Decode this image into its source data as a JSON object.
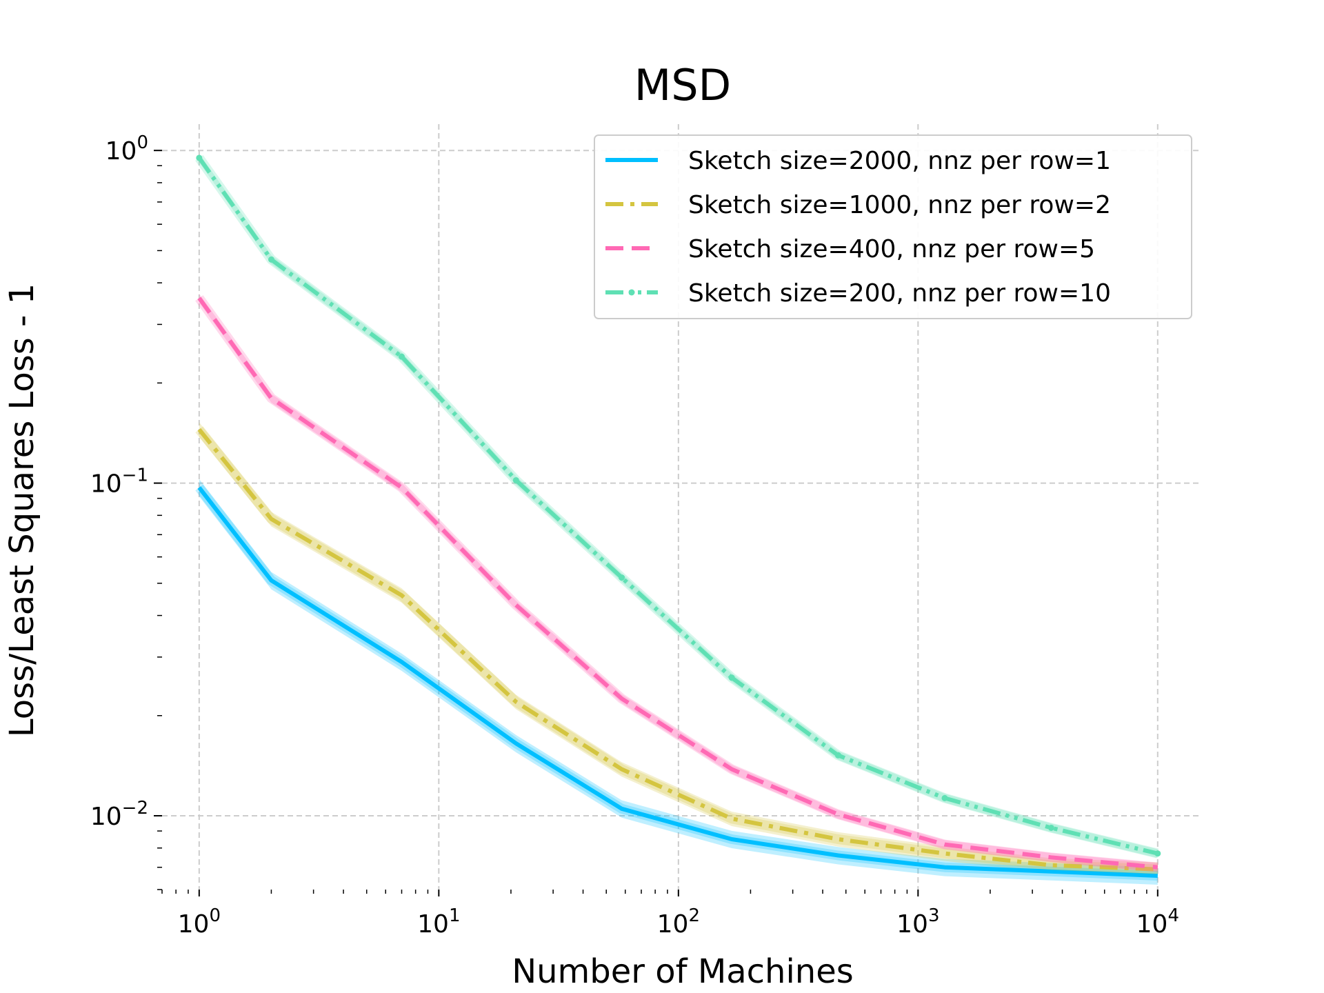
{
  "chart_data": {
    "type": "line",
    "title": "MSD",
    "xlabel": "Number of Machines",
    "ylabel": "Loss/Least Squares Loss - 1",
    "xscale": "log",
    "yscale": "log",
    "xlim": [
      0.7,
      15000
    ],
    "ylim": [
      0.006,
      1.2
    ],
    "xticks": [
      1,
      10,
      100,
      1000,
      10000
    ],
    "xtick_labels": [
      {
        "base": "10",
        "exp": "0"
      },
      {
        "base": "10",
        "exp": "1"
      },
      {
        "base": "10",
        "exp": "2"
      },
      {
        "base": "10",
        "exp": "3"
      },
      {
        "base": "10",
        "exp": "4"
      }
    ],
    "yticks": [
      0.01,
      0.1,
      1
    ],
    "ytick_labels": [
      {
        "base": "10",
        "exp": "−2"
      },
      {
        "base": "10",
        "exp": "−1"
      },
      {
        "base": "10",
        "exp": "0"
      }
    ],
    "grid": true,
    "legend_position": "top-right",
    "x": [
      1,
      2,
      7,
      21,
      58,
      167,
      464,
      1292,
      3594,
      10000
    ],
    "series": [
      {
        "name": "Sketch size=2000, nnz per row=1",
        "color": "#00bfff",
        "style": "solid",
        "values": [
          0.097,
          0.051,
          0.029,
          0.0165,
          0.0105,
          0.0085,
          0.0076,
          0.007,
          0.0068,
          0.0066
        ],
        "band": 0.06
      },
      {
        "name": "Sketch size=1000, nnz per row=2",
        "color": "#d4c540",
        "style": "dashdot",
        "values": [
          0.145,
          0.078,
          0.046,
          0.022,
          0.0138,
          0.0098,
          0.0085,
          0.0077,
          0.0071,
          0.0069
        ],
        "band": 0.05
      },
      {
        "name": "Sketch size=400, nnz per row=5",
        "color": "#ff69b4",
        "style": "dashed",
        "values": [
          0.36,
          0.18,
          0.097,
          0.043,
          0.0225,
          0.0138,
          0.0101,
          0.0082,
          0.0075,
          0.007
        ],
        "band": 0.03
      },
      {
        "name": "Sketch size=200, nnz per row=10",
        "color": "#5fe0b4",
        "style": "dashdotdot",
        "values": [
          0.95,
          0.47,
          0.24,
          0.102,
          0.052,
          0.026,
          0.0152,
          0.0113,
          0.0092,
          0.0077
        ],
        "band": 0.03
      }
    ]
  }
}
